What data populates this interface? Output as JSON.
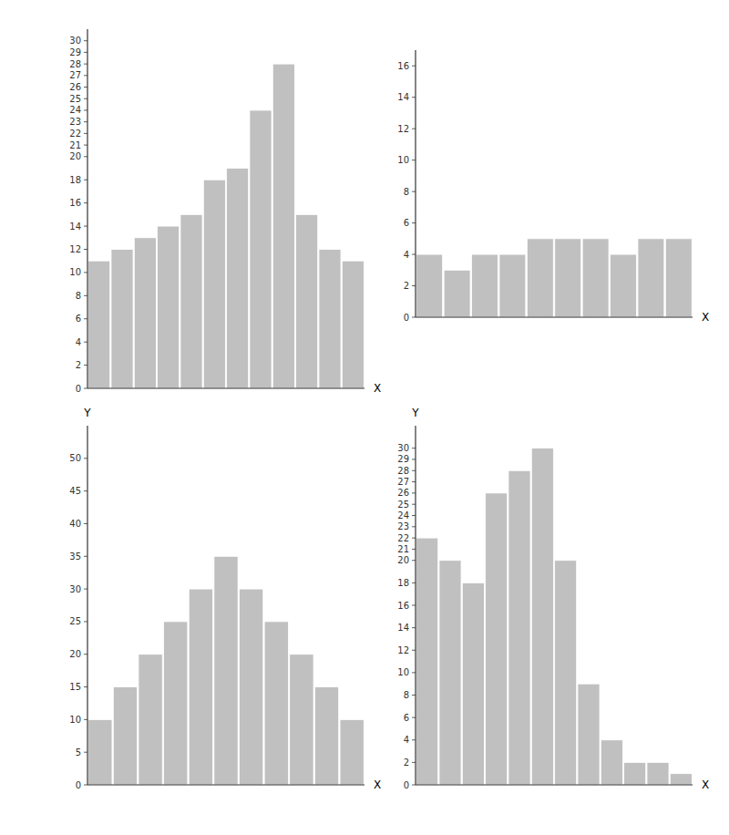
{
  "chart_data": [
    {
      "type": "bar",
      "values": [
        11,
        12,
        13,
        14,
        15,
        18,
        19,
        24,
        28,
        15,
        12,
        11
      ],
      "ylim": [
        0,
        31
      ],
      "yticks": [
        0,
        2,
        4,
        6,
        8,
        10,
        12,
        14,
        16,
        18,
        20,
        21,
        22,
        23,
        24,
        25,
        26,
        27,
        28,
        29,
        30
      ],
      "xlabel": "X",
      "color": "#c0c0c0",
      "grid": false,
      "tick_labels": "y"
    },
    {
      "type": "bar",
      "values": [
        4,
        3,
        4,
        4,
        5,
        5,
        5,
        4,
        5,
        5
      ],
      "ylim": [
        0,
        17
      ],
      "yticks": [
        0,
        2,
        4,
        6,
        8,
        10,
        12,
        14,
        16
      ],
      "xlabel": "X",
      "color": "#c0c0c0",
      "grid": false,
      "tick_labels": "y"
    },
    {
      "type": "bar",
      "values": [
        10,
        15,
        20,
        25,
        30,
        35,
        30,
        25,
        20,
        15,
        10
      ],
      "ylim": [
        0,
        55
      ],
      "yticks": [
        0,
        5,
        10,
        15,
        20,
        25,
        30,
        35,
        40,
        45,
        50
      ],
      "xlabel": "X",
      "ylabel": "Y",
      "color": "#c0c0c0",
      "grid": false,
      "tick_labels": "y"
    },
    {
      "type": "bar",
      "values": [
        22,
        20,
        18,
        26,
        28,
        30,
        20,
        9,
        4,
        2,
        2,
        1
      ],
      "ylim": [
        0,
        32
      ],
      "yticks": [
        0,
        2,
        4,
        6,
        8,
        10,
        12,
        14,
        16,
        18,
        20,
        21,
        22,
        23,
        24,
        25,
        26,
        27,
        28,
        29,
        30
      ],
      "xlabel": "X",
      "ylabel": "Y",
      "color": "#c0c0c0",
      "grid": false,
      "tick_labels": "y"
    }
  ]
}
